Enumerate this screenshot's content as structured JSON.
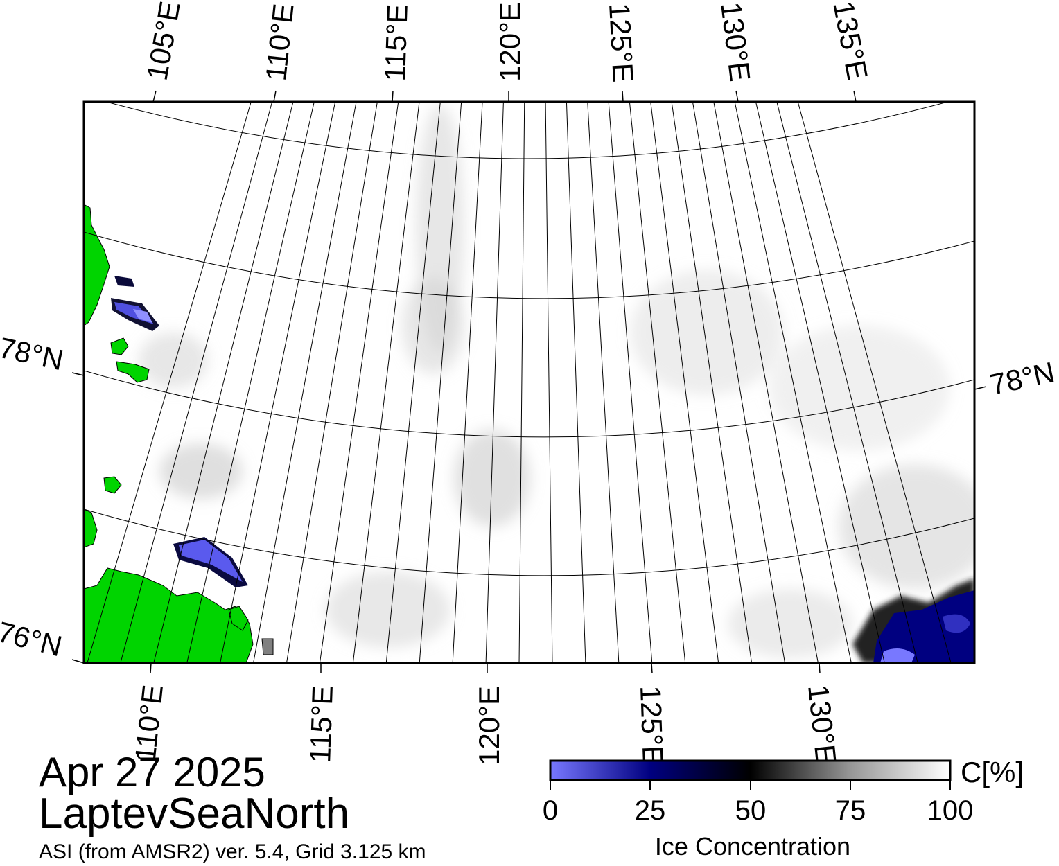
{
  "map": {
    "region": "Laptev Sea North",
    "lat_range_deg": [
      76,
      79.5
    ],
    "lon_range_deg": [
      103,
      140
    ],
    "top_lon_labels": [
      "105°E",
      "110°E",
      "115°E",
      "120°E",
      "125°E",
      "130°E",
      "135°E"
    ],
    "bottom_lon_labels": [
      "110°E",
      "115°E",
      "120°E",
      "125°E",
      "130°E"
    ],
    "lat_labels": [
      "78°N",
      "76°N"
    ],
    "colors": {
      "land": "#00d400",
      "land_fringe": "#808080",
      "open_water_low": "#7b7bff",
      "open_water_mid": "#00007a",
      "ice_full": "#ffffff",
      "frame": "#000000"
    }
  },
  "header": {
    "date": "Apr 27 2025",
    "region_name": "LaptevSeaNorth",
    "source": "ASI (from AMSR2) ver. 5.4,  Grid 3.125 km"
  },
  "colorbar": {
    "unit": "C[%]",
    "label": "Ice Concentration",
    "ticks": [
      "0",
      "25",
      "50",
      "75",
      "100"
    ],
    "range": [
      0,
      100
    ],
    "stops": [
      {
        "value": 0,
        "color": "#7878ff"
      },
      {
        "value": 25,
        "color": "#000080"
      },
      {
        "value": 50,
        "color": "#000000"
      },
      {
        "value": 75,
        "color": "#969696"
      },
      {
        "value": 100,
        "color": "#ffffff"
      }
    ]
  }
}
